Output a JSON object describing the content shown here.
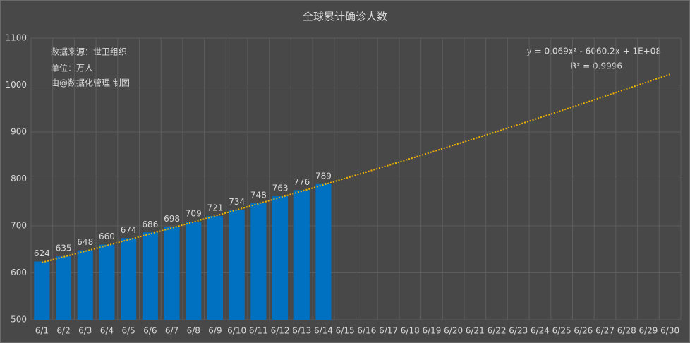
{
  "chart_data": {
    "type": "bar",
    "title": "全球累计确诊人数",
    "annotations": [
      "数据来源：世卫组织",
      "单位：万人",
      "由@数据化管理  制图"
    ],
    "trendline_equation": "y = 0.069x² - 6060.2x + 1E+08",
    "trendline_r2": "R² = 0.9996",
    "categories": [
      "6/1",
      "6/2",
      "6/3",
      "6/4",
      "6/5",
      "6/6",
      "6/7",
      "6/8",
      "6/9",
      "6/10",
      "6/11",
      "6/12",
      "6/13",
      "6/14",
      "6/15",
      "6/16",
      "6/17",
      "6/18",
      "6/19",
      "6/20",
      "6/21",
      "6/22",
      "6/23",
      "6/24",
      "6/25",
      "6/26",
      "6/27",
      "6/28",
      "6/29",
      "6/30"
    ],
    "values": [
      624,
      635,
      648,
      660,
      674,
      686,
      698,
      709,
      721,
      734,
      748,
      763,
      776,
      789,
      null,
      null,
      null,
      null,
      null,
      null,
      null,
      null,
      null,
      null,
      null,
      null,
      null,
      null,
      null,
      null
    ],
    "color": "#0070c0",
    "trendline": {
      "color": "#f0b400",
      "values": [
        622,
        633.9,
        645.9,
        658.1,
        670.4,
        682.9,
        695.5,
        708.2,
        721.1,
        734.1,
        747.2,
        760.5,
        773.9,
        787.5,
        801.1,
        815.0,
        828.9,
        843.1,
        857.3,
        871.7,
        886.2,
        900.9,
        915.7,
        930.6,
        945.7,
        960.9,
        976.2,
        991.7,
        1007.3,
        1023
      ]
    },
    "ylim": [
      500,
      1100
    ],
    "yticks": [
      500,
      600,
      700,
      800,
      900,
      1000,
      1100
    ],
    "grid": true
  }
}
